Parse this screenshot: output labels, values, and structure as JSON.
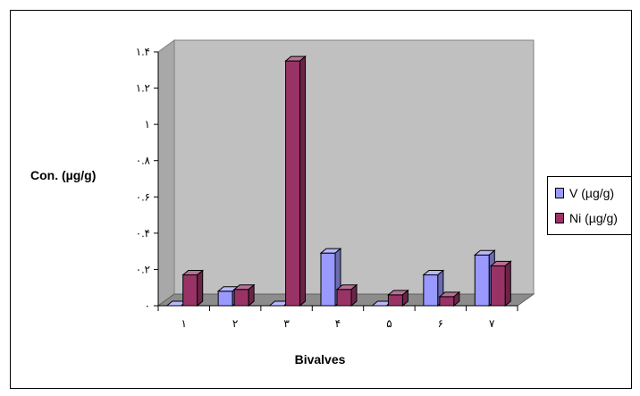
{
  "chart_data": {
    "type": "bar",
    "categories": [
      "١",
      "٢",
      "٣",
      "۴",
      "۵",
      "۶",
      "٧"
    ],
    "series": [
      {
        "name": "V (µg/g)",
        "values": [
          0.0,
          0.08,
          0.0,
          0.29,
          0.0,
          0.17,
          0.28
        ],
        "color": "#9999ff"
      },
      {
        "name": "Ni (µg/g)",
        "values": [
          0.17,
          0.09,
          1.35,
          0.09,
          0.06,
          0.05,
          0.22
        ],
        "color": "#993366"
      }
    ],
    "yticks": [
      0,
      0.2,
      0.4,
      0.6,
      0.8,
      1.0,
      1.2,
      1.4
    ],
    "ytick_labels": [
      "٠",
      "٠.٢",
      "٠.۴",
      "٠.۶",
      "٠.٨",
      "١",
      "١.٢",
      "١.۴"
    ],
    "ylim": [
      0,
      1.4
    ],
    "xlabel": "Bivalves",
    "ylabel": "Con. (µg/g)",
    "plot_background": "#c0c0c0",
    "legend_position": "right",
    "grid": false
  }
}
